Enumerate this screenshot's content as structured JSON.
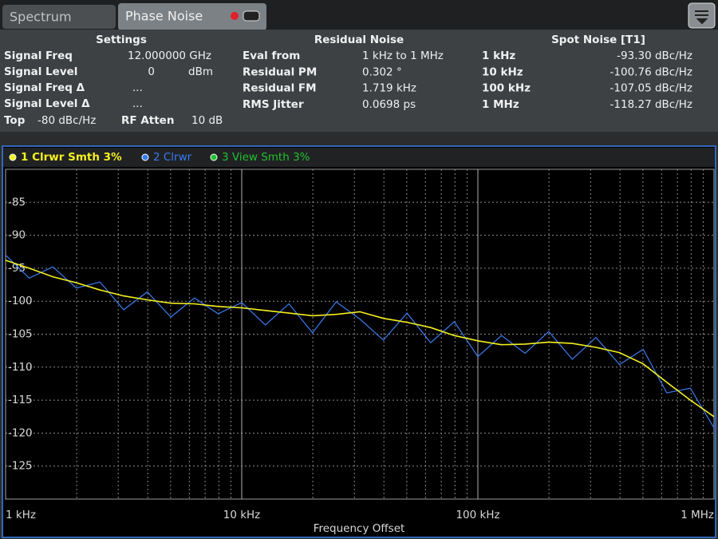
{
  "tabs": [
    "Spectrum",
    "Phase Noise"
  ],
  "settings": {
    "title": "Settings",
    "rows": [
      [
        "Signal Freq",
        "12.000000 GHz"
      ],
      [
        "Signal Level",
        "0",
        "dBm"
      ],
      [
        "Signal Freq Δ",
        "..."
      ],
      [
        "Signal Level Δ",
        "..."
      ],
      [
        "Top",
        "-80 dBc/Hz",
        "RF Atten",
        "10 dB"
      ]
    ]
  },
  "residual_noise": {
    "title": "Residual Noise",
    "rows": [
      [
        "Eval from",
        "1 kHz to 1 MHz"
      ],
      [
        "Residual PM",
        "0.302 °"
      ],
      [
        "Residual FM",
        "1.719 kHz"
      ],
      [
        "RMS Jitter",
        "0.0698 ps"
      ]
    ]
  },
  "spot_noise": {
    "title": "Spot Noise [T1]",
    "rows": [
      [
        "1 kHz",
        "-93.30 dBc/Hz"
      ],
      [
        "10 kHz",
        "-100.76 dBc/Hz"
      ],
      [
        "100 kHz",
        "-107.05 dBc/Hz"
      ],
      [
        "1 MHz",
        "-118.27 dBc/Hz"
      ]
    ]
  },
  "chart_data": {
    "type": "line",
    "xlabel": "Frequency Offset",
    "log_x": true,
    "grid": true,
    "xlim": [
      1000,
      1000000
    ],
    "xticks": [
      {
        "value": 1000,
        "label": "1 kHz"
      },
      {
        "value": 10000,
        "label": "10 kHz"
      },
      {
        "value": 100000,
        "label": "100 kHz"
      },
      {
        "value": 1000000,
        "label": "1 MHz"
      }
    ],
    "ylim": [
      -130,
      -80
    ],
    "yticks": [
      -85,
      -90,
      -95,
      -100,
      -105,
      -110,
      -115,
      -120,
      -125
    ],
    "x": [
      1000,
      1259,
      1585,
      1995,
      2512,
      3162,
      3981,
      5012,
      6310,
      7943,
      10000,
      12589,
      15849,
      19953,
      25119,
      31623,
      39811,
      50119,
      63096,
      79433,
      100000,
      125893,
      158489,
      199526,
      251189,
      316228,
      398107,
      501187,
      630957,
      794328,
      1000000
    ],
    "series": [
      {
        "name": "1 Clrwr Smth 3%",
        "color": "#f4f020",
        "values": [
          -93.8,
          -95,
          -96.3,
          -97.2,
          -98.3,
          -99.2,
          -99.8,
          -100.3,
          -100.4,
          -100.8,
          -101.0,
          -101.4,
          -101.8,
          -102.2,
          -102.0,
          -101.6,
          -102.6,
          -103.2,
          -104.0,
          -105.2,
          -106.0,
          -106.6,
          -106.5,
          -106.2,
          -106.4,
          -107.0,
          -107.8,
          -109.5,
          -112.3,
          -115.0,
          -117.5
        ]
      },
      {
        "name": "2 Clrwr",
        "color": "#3a7cf0",
        "values": [
          -93,
          -96.5,
          -94.8,
          -98,
          -97.1,
          -101.3,
          -98.6,
          -102.4,
          -99.5,
          -101.9,
          -100.2,
          -103.6,
          -100.4,
          -104.8,
          -100.1,
          -102.7,
          -105.9,
          -101.8,
          -106.3,
          -103.1,
          -108.4,
          -105.2,
          -107.9,
          -104.6,
          -108.8,
          -105.5,
          -109.6,
          -107.3,
          -113.9,
          -113.2,
          -119.2
        ]
      },
      {
        "name": "3 View Smth 3%",
        "color": "#22c030",
        "values": [
          null,
          null,
          null,
          null,
          null,
          null,
          null,
          null,
          null,
          null,
          null,
          null,
          null,
          null,
          null,
          null,
          null,
          null,
          null,
          null,
          null,
          null,
          null,
          null,
          null,
          null,
          null,
          null,
          null,
          null,
          null
        ]
      }
    ]
  }
}
